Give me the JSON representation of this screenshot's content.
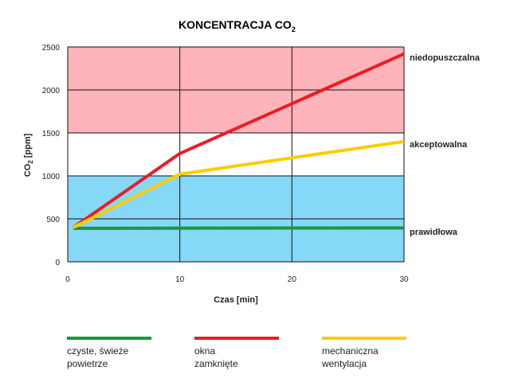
{
  "chart_data": {
    "type": "line",
    "title_main": "KONCENTRACJA CO",
    "title_sub": "2",
    "xlabel": "Czas [min]",
    "ylabel_main": "CO",
    "ylabel_sub": "2",
    "ylabel_unit": " [ppm]",
    "xlim": [
      0,
      30
    ],
    "ylim": [
      0,
      2500
    ],
    "xticks": [
      0,
      10,
      20,
      30
    ],
    "yticks": [
      0,
      500,
      1000,
      1500,
      2000,
      2500
    ],
    "grid": true,
    "zones": [
      {
        "name": "prawidłowa",
        "from": 0,
        "to": 1000,
        "color": "#86d8f7"
      },
      {
        "name": "akceptowalna",
        "from": 1000,
        "to": 1500,
        "color": "#ffffff"
      },
      {
        "name": "niedopuszczalna",
        "from": 1500,
        "to": 2500,
        "color": "#ffb3ba"
      }
    ],
    "zone_labels": [
      {
        "text": "niedopuszczalna",
        "y": 2380
      },
      {
        "text": "akceptowalna",
        "y": 1370
      },
      {
        "text": "prawidłowa",
        "y": 350
      }
    ],
    "series": [
      {
        "name": "czyste, świeże powietrze",
        "color": "#1a9641",
        "x": [
          0.5,
          30
        ],
        "y": [
          390,
          395
        ]
      },
      {
        "name": "okna zamknięte",
        "color": "#ed1c24",
        "x": [
          0.5,
          10,
          20,
          30
        ],
        "y": [
          400,
          1260,
          1840,
          2420
        ]
      },
      {
        "name": "mechaniczna wentylacja",
        "color": "#ffcc00",
        "x": [
          0.5,
          10,
          20,
          30
        ],
        "y": [
          400,
          1020,
          1210,
          1400
        ]
      }
    ]
  },
  "legend": [
    {
      "line1": "czyste, świeże",
      "line2": "powietrze",
      "color": "#1a9641"
    },
    {
      "line1": "okna",
      "line2": "zamknięte",
      "color": "#ed1c24"
    },
    {
      "line1": "mechaniczna",
      "line2": "wentylacja",
      "color": "#ffcc00"
    }
  ]
}
